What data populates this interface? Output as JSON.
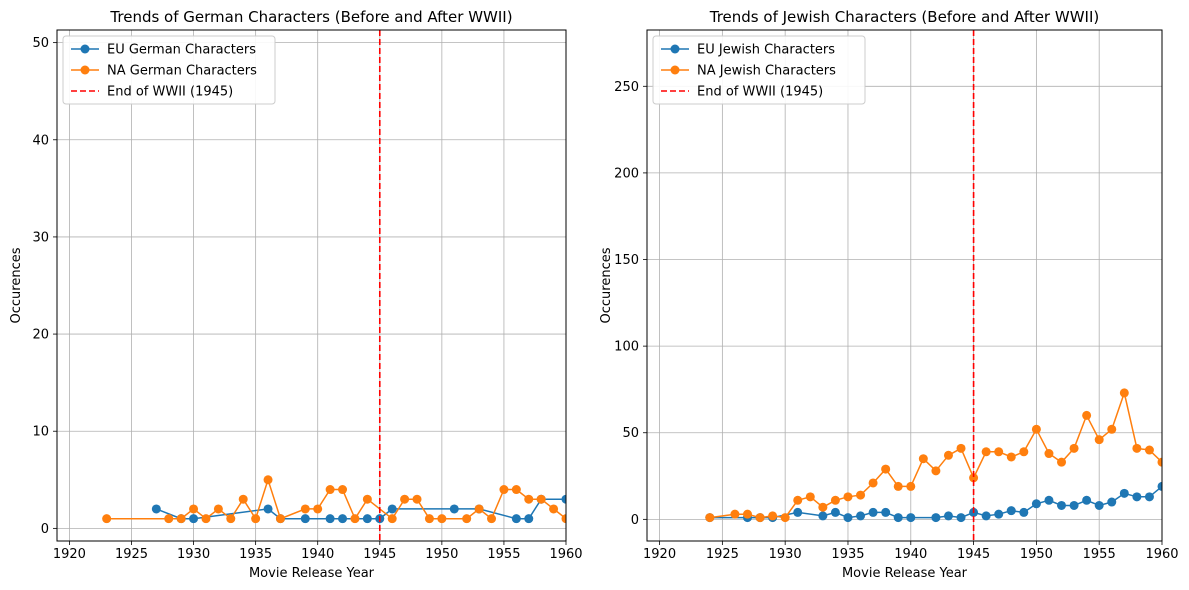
{
  "chart_data": [
    {
      "type": "line",
      "title": "Trends of German Characters (Before and After WWII)",
      "xlabel": "Movie Release Year",
      "ylabel": "Occurences",
      "xlim": [
        1919,
        1960
      ],
      "ylim": [
        -1.3,
        51.3
      ],
      "xticks": [
        1920,
        1925,
        1930,
        1935,
        1940,
        1945,
        1950,
        1955,
        1960
      ],
      "yticks": [
        0,
        10,
        20,
        30,
        40,
        50
      ],
      "grid": true,
      "legend_position": "upper left",
      "series": [
        {
          "name": "EU German Characters",
          "color": "#1f77b4",
          "x": [
            1927,
            1929,
            1930,
            1936,
            1937,
            1939,
            1941,
            1942,
            1944,
            1945,
            1946,
            1951,
            1953,
            1956,
            1957,
            1958,
            1960
          ],
          "y": [
            2,
            1,
            1,
            2,
            1,
            1,
            1,
            1,
            1,
            1,
            2,
            2,
            2,
            1,
            1,
            3,
            3
          ]
        },
        {
          "name": "NA German Characters",
          "color": "#ff7f0e",
          "x": [
            1923,
            1928,
            1929,
            1930,
            1931,
            1932,
            1933,
            1934,
            1935,
            1936,
            1937,
            1939,
            1940,
            1941,
            1942,
            1943,
            1944,
            1946,
            1947,
            1948,
            1949,
            1950,
            1952,
            1953,
            1954,
            1955,
            1956,
            1957,
            1958,
            1959,
            1960
          ],
          "y": [
            1,
            1,
            1,
            2,
            1,
            2,
            1,
            3,
            1,
            5,
            1,
            2,
            2,
            4,
            4,
            1,
            3,
            1,
            3,
            3,
            1,
            1,
            1,
            2,
            1,
            4,
            4,
            3,
            3,
            2,
            1
          ]
        }
      ],
      "reference_lines": [
        {
          "name": "End of WWII (1945)",
          "x": 1945,
          "color": "#ff0000",
          "style": "dashed"
        }
      ]
    },
    {
      "type": "line",
      "title": "Trends of Jewish Characters (Before and After WWII)",
      "xlabel": "Movie Release Year",
      "ylabel": "Occurences",
      "xlim": [
        1919,
        1960
      ],
      "ylim": [
        -12.5,
        282.5
      ],
      "xticks": [
        1920,
        1925,
        1930,
        1935,
        1940,
        1945,
        1950,
        1955,
        1960
      ],
      "yticks": [
        0,
        50,
        100,
        150,
        200,
        250
      ],
      "grid": true,
      "legend_position": "upper left",
      "series": [
        {
          "name": "EU Jewish Characters",
          "color": "#1f77b4",
          "x": [
            1924,
            1927,
            1928,
            1929,
            1931,
            1933,
            1934,
            1935,
            1936,
            1937,
            1938,
            1939,
            1940,
            1942,
            1943,
            1944,
            1945,
            1946,
            1947,
            1948,
            1949,
            1950,
            1951,
            1952,
            1953,
            1954,
            1955,
            1956,
            1957,
            1958,
            1959,
            1960
          ],
          "y": [
            1,
            1,
            1,
            1,
            4,
            2,
            4,
            1,
            2,
            4,
            4,
            1,
            1,
            1,
            2,
            1,
            4,
            2,
            3,
            5,
            4,
            9,
            11,
            8,
            8,
            11,
            8,
            10,
            15,
            13,
            13,
            19
          ]
        },
        {
          "name": "NA Jewish Characters",
          "color": "#ff7f0e",
          "x": [
            1924,
            1926,
            1927,
            1928,
            1929,
            1930,
            1931,
            1932,
            1933,
            1934,
            1935,
            1936,
            1937,
            1938,
            1939,
            1940,
            1941,
            1942,
            1943,
            1944,
            1945,
            1946,
            1947,
            1948,
            1949,
            1950,
            1951,
            1952,
            1953,
            1954,
            1955,
            1956,
            1957,
            1958,
            1959,
            1960
          ],
          "y": [
            1,
            3,
            3,
            1,
            2,
            1,
            11,
            13,
            7,
            11,
            13,
            14,
            21,
            29,
            19,
            19,
            35,
            28,
            37,
            41,
            24,
            39,
            39,
            36,
            39,
            52,
            38,
            33,
            41,
            60,
            46,
            52,
            73,
            41,
            40,
            33
          ]
        }
      ],
      "reference_lines": [
        {
          "name": "End of WWII (1945)",
          "x": 1945,
          "color": "#ff0000",
          "style": "dashed"
        }
      ]
    }
  ]
}
